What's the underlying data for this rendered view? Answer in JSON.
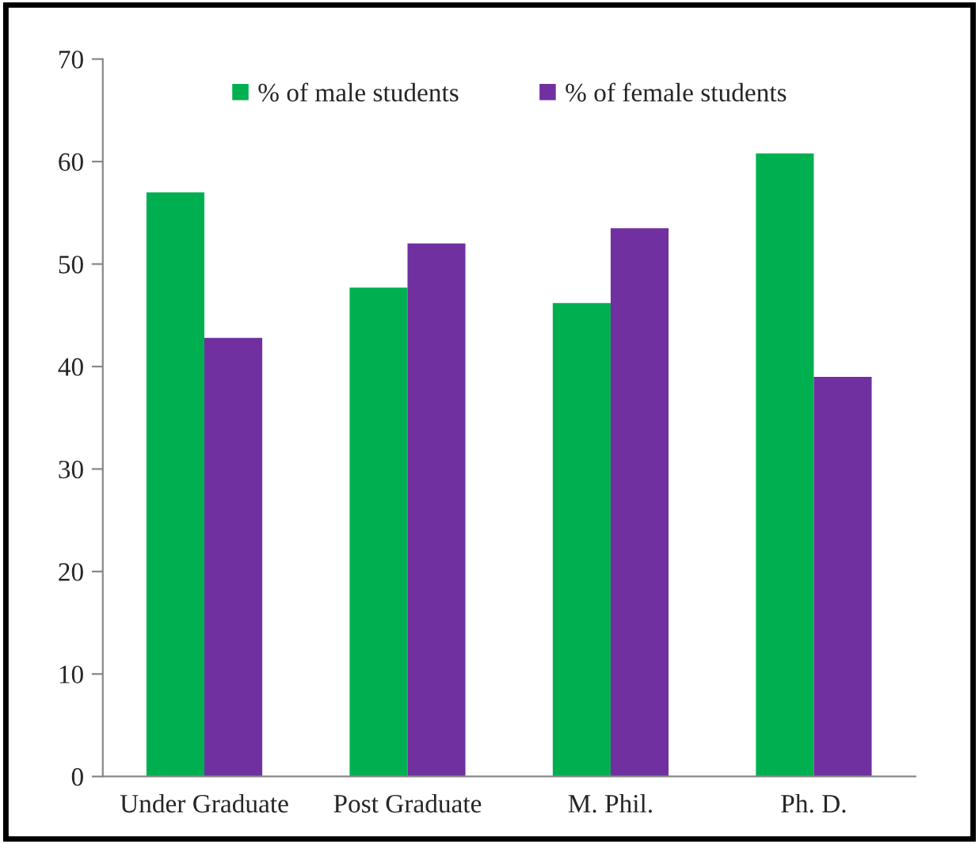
{
  "chart_data": {
    "type": "bar",
    "categories": [
      "Under Graduate",
      "Post Graduate",
      "M. Phil.",
      "Ph. D."
    ],
    "series": [
      {
        "name": "% of male students",
        "color": "#00b050",
        "values": [
          57.0,
          47.7,
          46.2,
          60.8
        ]
      },
      {
        "name": "% of female students",
        "color": "#7030a0",
        "values": [
          42.8,
          52.0,
          53.5,
          39.0
        ]
      }
    ],
    "ylim": [
      0,
      70
    ],
    "yticks": [
      0,
      10,
      20,
      30,
      40,
      50,
      60,
      70
    ],
    "grid": false,
    "legend": "top"
  }
}
